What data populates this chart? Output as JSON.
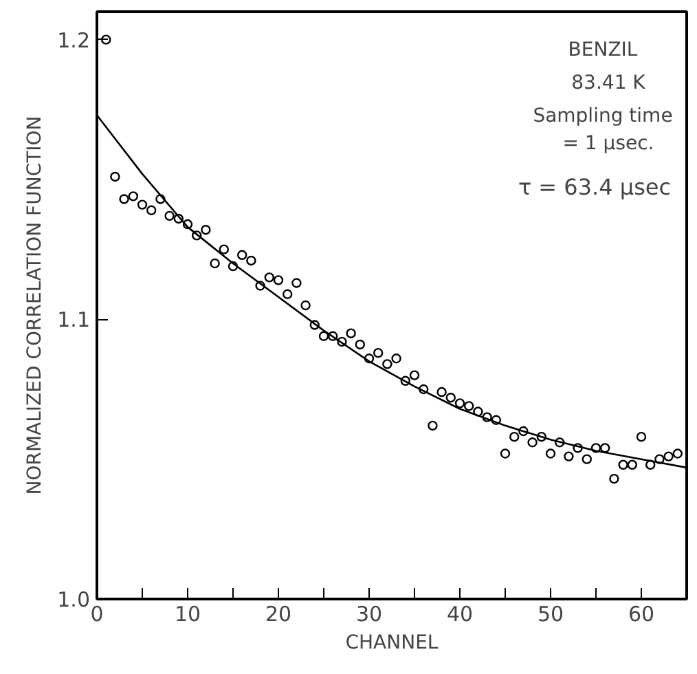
{
  "chart_data": {
    "type": "scatter",
    "xlabel": "CHANNEL",
    "ylabel": "NORMALIZED CORRELATION FUNCTION",
    "xlim": [
      0,
      65
    ],
    "ylim": [
      1.0,
      1.21
    ],
    "xticks": [
      0,
      {
        "value": 5,
        "label": null
      },
      10,
      {
        "value": 15,
        "label": null
      },
      20,
      {
        "value": 25,
        "label": null
      },
      30,
      {
        "value": 35,
        "label": null
      },
      40,
      {
        "value": 45,
        "label": null
      },
      50,
      {
        "value": 55,
        "label": null
      },
      60
    ],
    "yticks": [
      {
        "value": 1.0,
        "label": "1.0"
      },
      {
        "value": 1.1,
        "label": "1.1"
      },
      {
        "value": 1.2,
        "label": "1.2"
      }
    ],
    "grid": false,
    "marker": "circle",
    "annotations": [
      "BENZIL",
      "83.41 K",
      "Sampling time",
      "= 1 μsec.",
      "τ = 63.4 μsec"
    ],
    "series": [
      {
        "color": "#000000",
        "x": [
          1,
          2,
          3,
          4,
          5,
          6,
          7,
          8,
          9,
          10,
          11,
          12,
          13,
          14,
          15,
          16,
          17,
          18,
          19,
          20,
          21,
          22,
          23,
          24,
          25,
          26,
          27,
          28,
          29,
          30,
          31,
          32,
          33,
          34,
          35,
          36,
          37,
          38,
          39,
          40,
          41,
          42,
          43,
          44,
          45,
          46,
          47,
          48,
          49,
          50,
          51,
          52,
          53,
          54,
          55,
          56,
          57,
          58,
          59,
          60,
          61,
          62,
          63,
          64
        ],
        "values": [
          1.2,
          1.151,
          1.143,
          1.144,
          1.141,
          1.139,
          1.143,
          1.137,
          1.136,
          1.134,
          1.13,
          1.132,
          1.12,
          1.125,
          1.119,
          1.123,
          1.121,
          1.112,
          1.115,
          1.114,
          1.109,
          1.113,
          1.105,
          1.098,
          1.094,
          1.094,
          1.092,
          1.095,
          1.091,
          1.086,
          1.088,
          1.084,
          1.086,
          1.078,
          1.08,
          1.075,
          1.062,
          1.074,
          1.072,
          1.07,
          1.069,
          1.067,
          1.065,
          1.064,
          1.052,
          1.058,
          1.06,
          1.056,
          1.058,
          1.052,
          1.056,
          1.051,
          1.054,
          1.05,
          1.054,
          1.054,
          1.043,
          1.048,
          1.048,
          1.058,
          1.048,
          1.05,
          1.051,
          1.052
        ]
      },
      {
        "type": "line",
        "color": "#000000",
        "marker": "none",
        "x": [
          0,
          5,
          10,
          15,
          20,
          25,
          30,
          35,
          40,
          45,
          50,
          55,
          60,
          65
        ],
        "values": [
          1.173,
          1.152,
          1.133,
          1.12,
          1.108,
          1.096,
          1.085,
          1.076,
          1.068,
          1.062,
          1.057,
          1.053,
          1.05,
          1.047
        ]
      }
    ]
  }
}
